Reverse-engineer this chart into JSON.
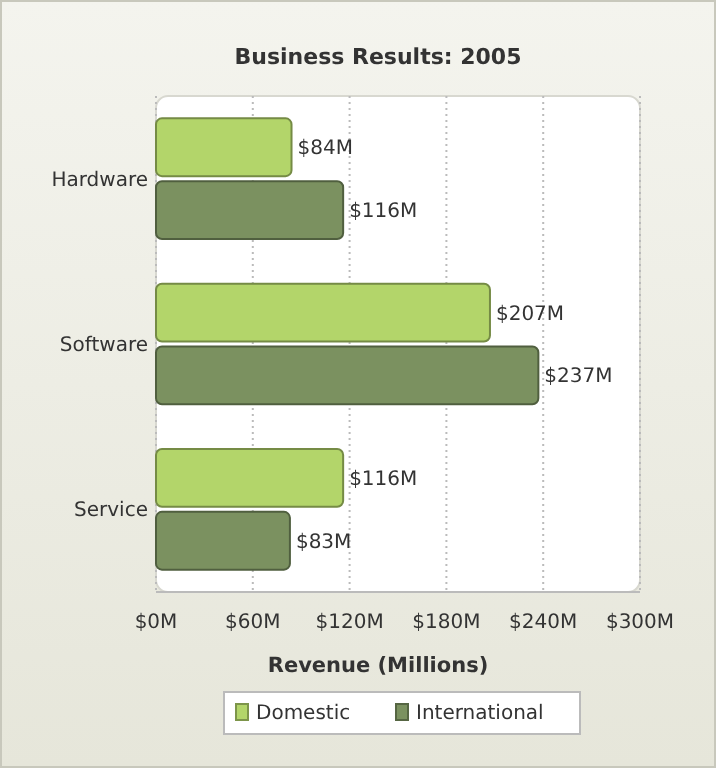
{
  "chart_data": {
    "type": "bar",
    "orientation": "horizontal",
    "title": "Business Results: 2005",
    "xlabel": "Revenue (Millions)",
    "categories": [
      "Hardware",
      "Software",
      "Service"
    ],
    "series": [
      {
        "name": "Domestic",
        "color": "#b3d56a",
        "values": [
          84,
          207,
          116
        ],
        "value_labels": [
          "$84M",
          "$207M",
          "$116M"
        ]
      },
      {
        "name": "International",
        "color": "#7b9160",
        "values": [
          116,
          237,
          83
        ],
        "value_labels": [
          "$116M",
          "$237M",
          "$83M"
        ]
      }
    ],
    "xlim": [
      0,
      300
    ],
    "xticks": [
      {
        "value": 0,
        "label": "$0M"
      },
      {
        "value": 60,
        "label": "$60M"
      },
      {
        "value": 120,
        "label": "$120M"
      },
      {
        "value": 180,
        "label": "$180M"
      },
      {
        "value": 240,
        "label": "$240M"
      },
      {
        "value": 300,
        "label": "$300M"
      }
    ],
    "grid": "x",
    "legend": "bottom"
  }
}
